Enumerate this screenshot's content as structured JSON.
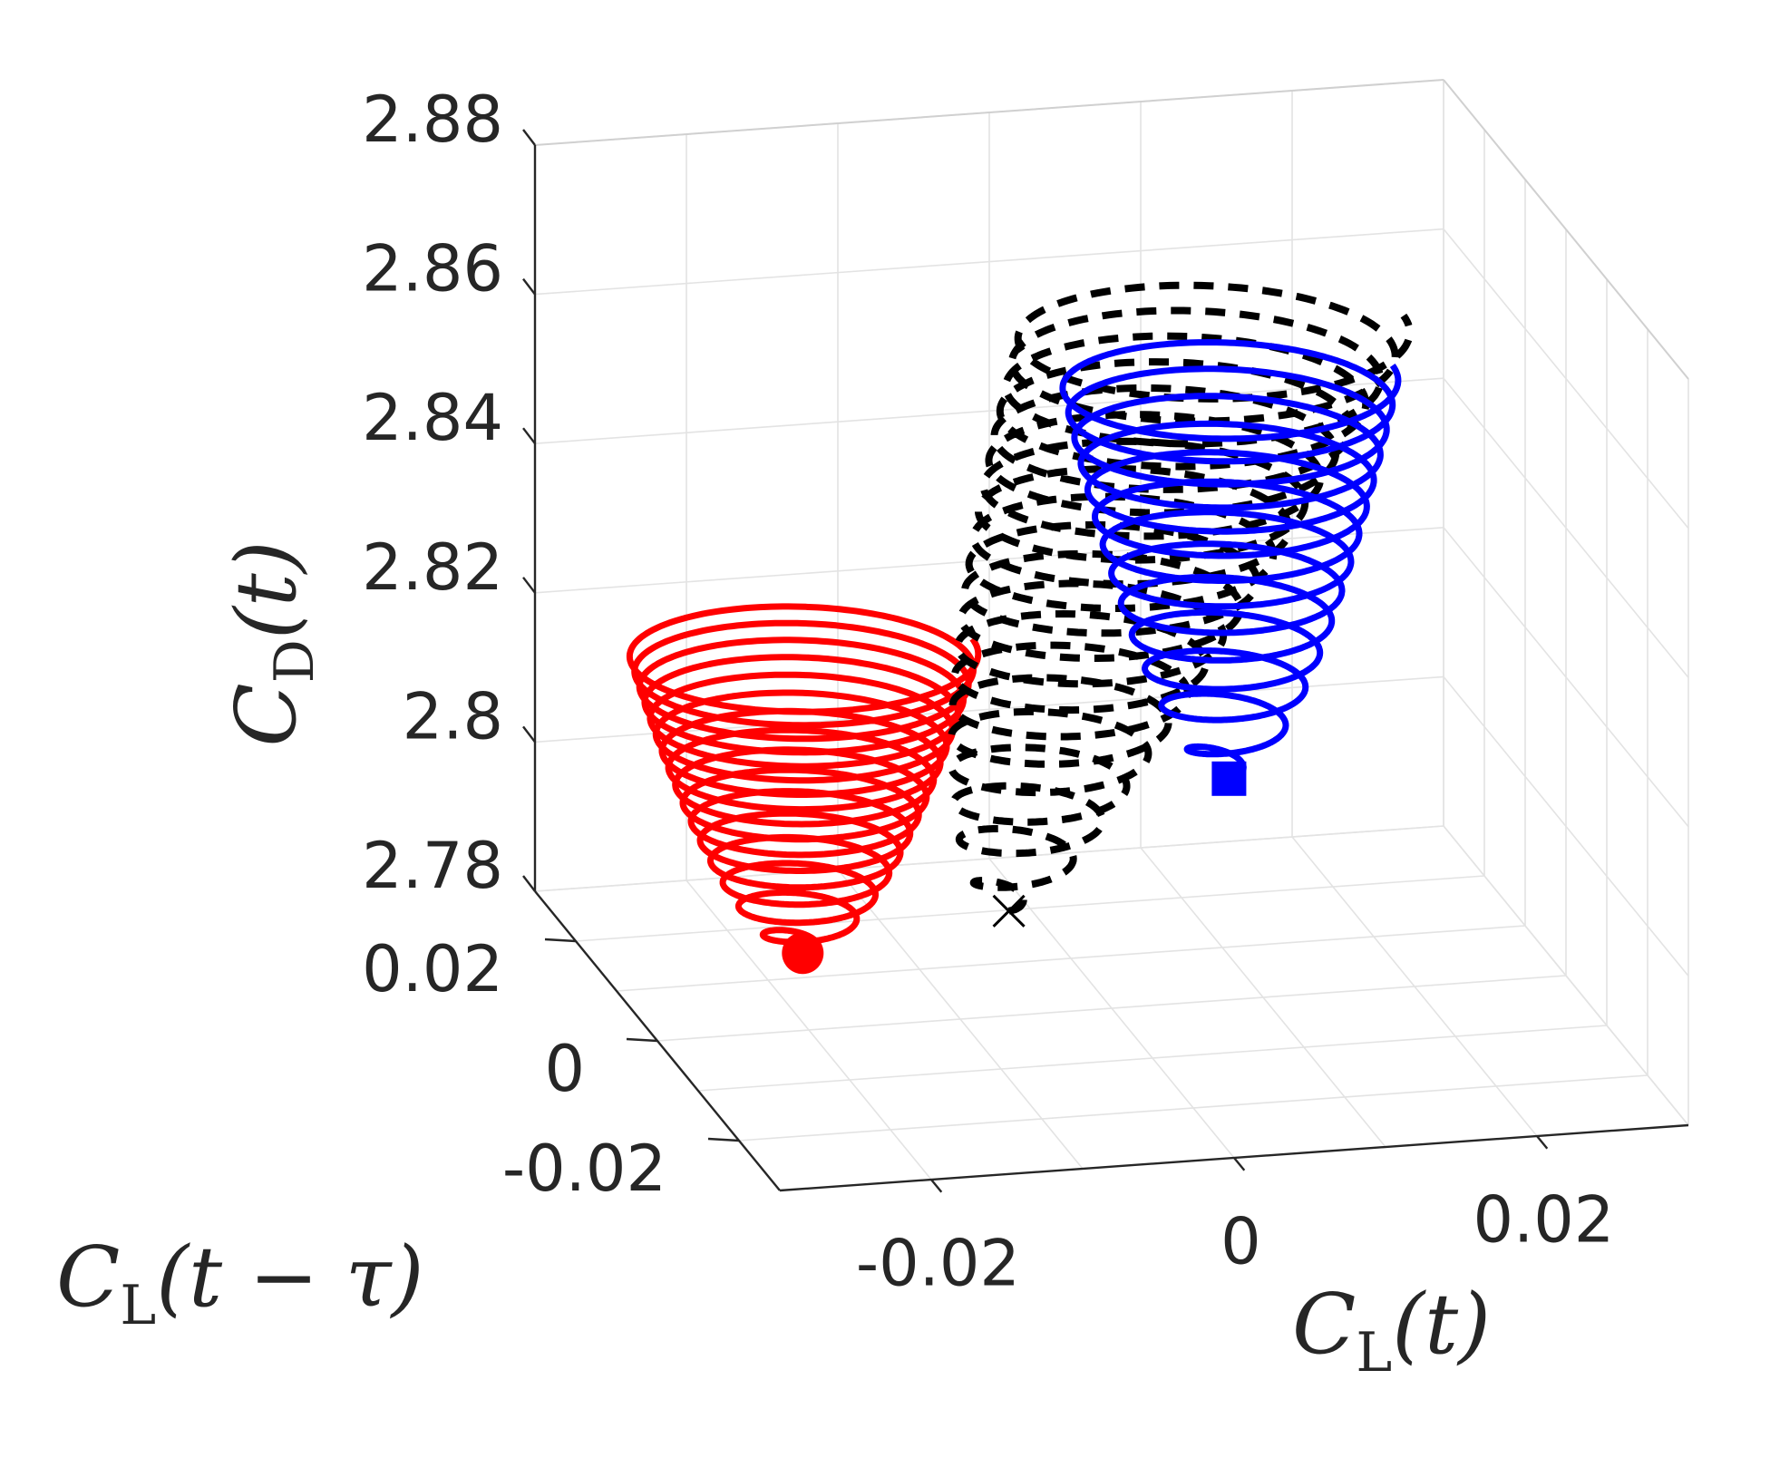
{
  "chart_data": {
    "type": "line3d",
    "title": "",
    "xlabel": {
      "base": "C",
      "sub": "L",
      "rest": "(t)"
    },
    "ylabel": {
      "base": "C",
      "sub": "L",
      "rest": "(t − τ)"
    },
    "zlabel": {
      "base": "C",
      "sub": "D",
      "rest": "(t)"
    },
    "xlim": [
      -0.03,
      0.03
    ],
    "ylim": [
      -0.03,
      0.03
    ],
    "zlim": [
      2.78,
      2.88
    ],
    "x_ticks": [
      -0.02,
      0,
      0.02
    ],
    "x_tick_labels": [
      "-0.02",
      "0",
      "0.02"
    ],
    "y_ticks": [
      -0.02,
      0,
      0.02
    ],
    "y_tick_labels": [
      "-0.02",
      "0",
      "0.02"
    ],
    "z_ticks": [
      2.78,
      2.8,
      2.82,
      2.84,
      2.86,
      2.88
    ],
    "z_tick_labels": [
      "2.78",
      "2.8",
      "2.82",
      "2.84",
      "2.86",
      "2.88"
    ],
    "grid": true,
    "series": [
      {
        "color": "#ff0000",
        "style": "solid",
        "marker": "circle",
        "start": {
          "x": -0.0235,
          "y": -0.0115,
          "z": 2.7985
        },
        "end": {
          "x": -0.0235,
          "y": -0.0115,
          "z": 2.839
        },
        "radius_max": 0.0112,
        "turns": 16
      },
      {
        "color": "#000000",
        "style": "dashed",
        "marker": "x",
        "start": {
          "x": -0.0045,
          "y": 0.0085,
          "z": 2.788
        },
        "end": {
          "x": 0.0124,
          "y": 0.0205,
          "z": 2.8555
        },
        "radius_max": 0.0124,
        "turns": 20
      },
      {
        "color": "#0000ff",
        "style": "solid",
        "marker": "square",
        "start": {
          "x": 0.0078,
          "y": 0.0002,
          "z": 2.8095
        },
        "end": {
          "x": 0.0078,
          "y": 0.0002,
          "z": 2.8633
        },
        "radius_max": 0.0108,
        "turns": 13
      }
    ]
  }
}
